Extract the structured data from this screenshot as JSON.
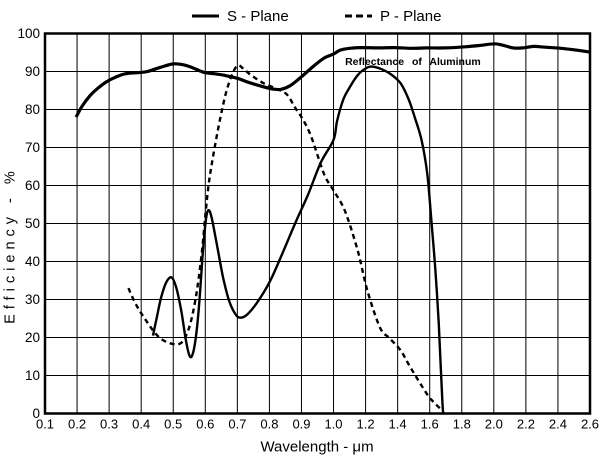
{
  "chart_data": {
    "type": "line",
    "title": "",
    "xlabel": "Wavelength - μm",
    "ylabel": "Efficiency - %",
    "x_axis": {
      "tick_labels": [
        "0.1",
        "0.2",
        "0.3",
        "0.4",
        "0.5",
        "0.6",
        "0.7",
        "0.8",
        "0.9",
        "1.0",
        "1.2",
        "1.4",
        "1.6",
        "1.8",
        "2.0",
        "2.2",
        "2.4",
        "2.6"
      ],
      "scale": "piecewise-linear",
      "break_at": 1.0,
      "step_below_break": 0.1,
      "step_above_break": 0.2,
      "min": 0.1,
      "max": 2.6
    },
    "y_axis": {
      "min": 0,
      "max": 100,
      "gridline_step": 10,
      "tick_labels": [
        "0",
        "10",
        "20",
        "30",
        "40",
        "50",
        "60",
        "70",
        "80",
        "90",
        "100"
      ]
    },
    "legend": [
      {
        "label": "S - Plane",
        "style": "solid"
      },
      {
        "label": "P - Plane",
        "style": "dashed"
      }
    ],
    "series": [
      {
        "name": "Reflectance of Aluminum",
        "style": "solid",
        "stroke_width": 3.2,
        "points": [
          [
            0.197,
            78
          ],
          [
            0.215,
            80.8
          ],
          [
            0.24,
            83.6
          ],
          [
            0.265,
            85.6
          ],
          [
            0.29,
            87.2
          ],
          [
            0.32,
            88.5
          ],
          [
            0.35,
            89.4
          ],
          [
            0.39,
            89.7
          ],
          [
            0.42,
            90
          ],
          [
            0.46,
            91.1
          ],
          [
            0.5,
            92
          ],
          [
            0.53,
            91.8
          ],
          [
            0.56,
            91
          ],
          [
            0.595,
            89.8
          ],
          [
            0.63,
            89.4
          ],
          [
            0.66,
            89
          ],
          [
            0.7,
            88.2
          ],
          [
            0.74,
            87
          ],
          [
            0.78,
            86
          ],
          [
            0.81,
            85.4
          ],
          [
            0.835,
            85.3
          ],
          [
            0.865,
            86.3
          ],
          [
            0.9,
            88.6
          ],
          [
            0.935,
            91.2
          ],
          [
            0.97,
            93.5
          ],
          [
            1.0,
            94.6
          ],
          [
            1.04,
            95.6
          ],
          [
            1.1,
            96.1
          ],
          [
            1.18,
            96.3
          ],
          [
            1.28,
            96.2
          ],
          [
            1.38,
            96.3
          ],
          [
            1.48,
            96.1
          ],
          [
            1.58,
            96.2
          ],
          [
            1.7,
            96.2
          ],
          [
            1.82,
            96.5
          ],
          [
            1.92,
            96.9
          ],
          [
            2.0,
            97.3
          ],
          [
            2.05,
            97
          ],
          [
            2.12,
            96.2
          ],
          [
            2.18,
            96.2
          ],
          [
            2.25,
            96.6
          ],
          [
            2.32,
            96.4
          ],
          [
            2.42,
            96.1
          ],
          [
            2.52,
            95.6
          ],
          [
            2.6,
            95.1
          ]
        ]
      },
      {
        "name": "S - Plane",
        "style": "solid",
        "stroke_width": 2.4,
        "points": [
          [
            0.437,
            20.5
          ],
          [
            0.448,
            25
          ],
          [
            0.462,
            30.5
          ],
          [
            0.478,
            34.5
          ],
          [
            0.495,
            35.8
          ],
          [
            0.51,
            33
          ],
          [
            0.525,
            27
          ],
          [
            0.54,
            19
          ],
          [
            0.552,
            15
          ],
          [
            0.562,
            16
          ],
          [
            0.572,
            21
          ],
          [
            0.582,
            30
          ],
          [
            0.592,
            42
          ],
          [
            0.602,
            51
          ],
          [
            0.61,
            53.5
          ],
          [
            0.62,
            51.5
          ],
          [
            0.635,
            45
          ],
          [
            0.655,
            36
          ],
          [
            0.675,
            29.5
          ],
          [
            0.695,
            26
          ],
          [
            0.71,
            25.2
          ],
          [
            0.73,
            26
          ],
          [
            0.76,
            29
          ],
          [
            0.8,
            34.5
          ],
          [
            0.84,
            42
          ],
          [
            0.88,
            50
          ],
          [
            0.92,
            57.5
          ],
          [
            0.96,
            66
          ],
          [
            1.0,
            72
          ],
          [
            1.022,
            77
          ],
          [
            1.06,
            82.5
          ],
          [
            1.1,
            85.8
          ],
          [
            1.15,
            89
          ],
          [
            1.2,
            90.8
          ],
          [
            1.24,
            91.3
          ],
          [
            1.3,
            90.6
          ],
          [
            1.36,
            89.2
          ],
          [
            1.42,
            86.8
          ],
          [
            1.47,
            82.5
          ],
          [
            1.51,
            77.5
          ],
          [
            1.55,
            71.8
          ],
          [
            1.585,
            63
          ],
          [
            1.61,
            51
          ],
          [
            1.635,
            38
          ],
          [
            1.656,
            24
          ],
          [
            1.669,
            12
          ],
          [
            1.679,
            3
          ],
          [
            1.684,
            0
          ]
        ]
      },
      {
        "name": "P - Plane",
        "style": "dashed",
        "stroke_width": 2.4,
        "points": [
          [
            0.36,
            33
          ],
          [
            0.385,
            28.5
          ],
          [
            0.415,
            24.5
          ],
          [
            0.445,
            21
          ],
          [
            0.47,
            19.2
          ],
          [
            0.5,
            18.3
          ],
          [
            0.525,
            18.6
          ],
          [
            0.545,
            21.5
          ],
          [
            0.56,
            26
          ],
          [
            0.575,
            33
          ],
          [
            0.59,
            43
          ],
          [
            0.6,
            52
          ],
          [
            0.61,
            60
          ],
          [
            0.625,
            68
          ],
          [
            0.645,
            77
          ],
          [
            0.665,
            84.5
          ],
          [
            0.685,
            89.5
          ],
          [
            0.702,
            91.6
          ],
          [
            0.72,
            90.6
          ],
          [
            0.745,
            88.9
          ],
          [
            0.78,
            87
          ],
          [
            0.82,
            85.5
          ],
          [
            0.854,
            84
          ],
          [
            0.88,
            80.5
          ],
          [
            0.9,
            78
          ],
          [
            0.926,
            73.8
          ],
          [
            0.95,
            68
          ],
          [
            0.973,
            62.5
          ],
          [
            1.0,
            58.7
          ],
          [
            1.07,
            53.4
          ],
          [
            1.15,
            43
          ],
          [
            1.21,
            32.5
          ],
          [
            1.29,
            22.6
          ],
          [
            1.35,
            19.8
          ],
          [
            1.42,
            16.5
          ],
          [
            1.48,
            12.1
          ],
          [
            1.58,
            5.3
          ],
          [
            1.62,
            3.2
          ],
          [
            1.675,
            0.9
          ]
        ]
      }
    ],
    "annotation": {
      "text": "Reflectance of Aluminum",
      "x": 1.072,
      "y": 91.7
    },
    "colors": {
      "line": "#000000",
      "grid": "#000000",
      "background": "#ffffff"
    }
  }
}
